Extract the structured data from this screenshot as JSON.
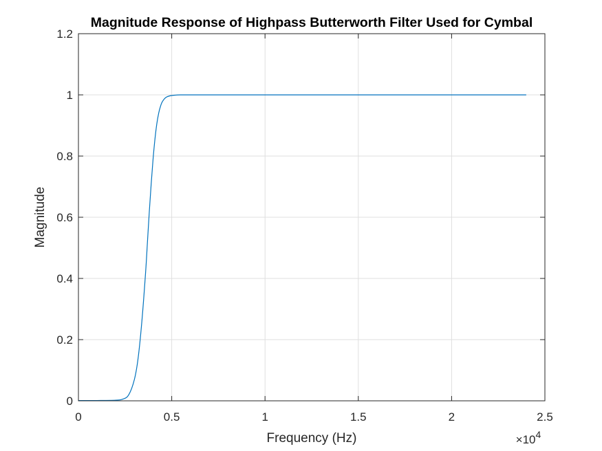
{
  "colors": {
    "series": "#0072BD",
    "grid": "#DFDFDF",
    "axis": "#262626",
    "background": "#FFFFFF"
  },
  "chart_data": {
    "type": "line",
    "title": "Magnitude Response of Highpass Butterworth Filter Used for Cymbal",
    "xlabel": "Frequency (Hz)",
    "ylabel": "Magnitude",
    "xlim": [
      0,
      25000
    ],
    "ylim": [
      0,
      1.2
    ],
    "x_scale_note": "×10^4",
    "x_ticks": [
      0,
      5000,
      10000,
      15000,
      20000,
      25000
    ],
    "x_tick_labels": [
      "0",
      "0.5",
      "1",
      "1.5",
      "2",
      "2.5"
    ],
    "y_ticks": [
      0,
      0.2,
      0.4,
      0.6,
      0.8,
      1.0,
      1.2
    ],
    "y_tick_labels": [
      "0",
      "0.2",
      "0.4",
      "0.6",
      "0.8",
      "1",
      "1.2"
    ],
    "grid": true,
    "box": true,
    "series": [
      {
        "x": [
          0,
          1000,
          2000,
          2400,
          2700,
          3000,
          3200,
          3400,
          3600,
          3700,
          3800,
          3900,
          4000,
          4100,
          4200,
          4300,
          4400,
          4500,
          4700,
          5000,
          5500,
          6000,
          8000,
          12000,
          16000,
          20000,
          24000
        ],
        "y": [
          0.001,
          0.001,
          0.002,
          0.006,
          0.02,
          0.07,
          0.14,
          0.26,
          0.42,
          0.52,
          0.62,
          0.71,
          0.79,
          0.855,
          0.905,
          0.94,
          0.963,
          0.978,
          0.992,
          0.998,
          1.0,
          1.0,
          1.0,
          1.0,
          1.0,
          1.0,
          1.0
        ]
      }
    ]
  }
}
